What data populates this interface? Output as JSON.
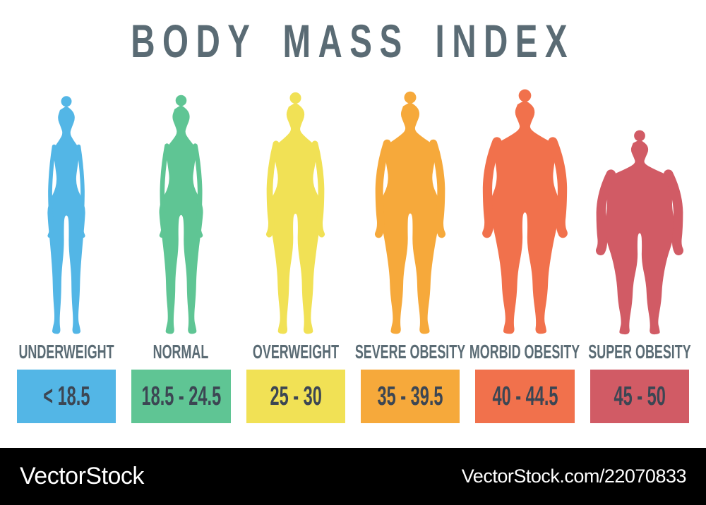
{
  "title": "BODY MASS INDEX",
  "text_colors": {
    "title": "#5A6B74",
    "label": "#5A6B74",
    "range": "#3C4653"
  },
  "categories": [
    {
      "label": "UNDERWEIGHT",
      "range": "< 18.5",
      "color": "#53B6E6"
    },
    {
      "label": "NORMAL",
      "range": "18.5 - 24.5",
      "color": "#5FC594"
    },
    {
      "label": "OVERWEIGHT",
      "range": "25 - 30",
      "color": "#F1E155"
    },
    {
      "label": "SEVERE OBESITY",
      "range": "35 - 39.5",
      "color": "#F6A93B"
    },
    {
      "label": "MORBID OBESITY",
      "range": "40 - 44.5",
      "color": "#F1714C"
    },
    {
      "label": "SUPER OBESITY",
      "range": "45 - 50",
      "color": "#D15B65"
    }
  ],
  "footer": {
    "brand": "VectorStock",
    "credit": "VectorStock.com/22070833",
    "bar_color": "#000000"
  }
}
